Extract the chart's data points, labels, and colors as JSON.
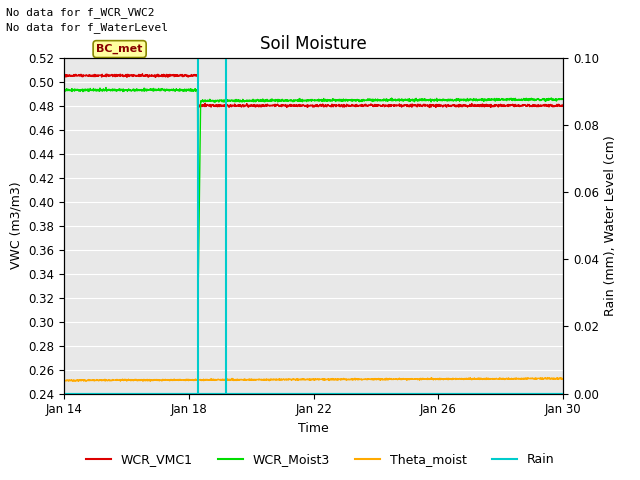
{
  "title": "Soil Moisture",
  "xlabel": "Time",
  "ylabel_left": "VWC (m3/m3)",
  "ylabel_right": "Rain (mm), Water Level (cm)",
  "annotation_line1": "No data for f_WCR_VWC2",
  "annotation_line2": "No data for f_WaterLevel",
  "bc_met_label": "BC_met",
  "ylim_left": [
    0.24,
    0.52
  ],
  "ylim_right": [
    0.0,
    0.1
  ],
  "yticks_left": [
    0.24,
    0.26,
    0.28,
    0.3,
    0.32,
    0.34,
    0.36,
    0.38,
    0.4,
    0.42,
    0.44,
    0.46,
    0.48,
    0.5,
    0.52
  ],
  "yticks_right": [
    0.0,
    0.02,
    0.04,
    0.06,
    0.08,
    0.1
  ],
  "xtick_labels": [
    "Jan 14",
    "Jan 18",
    "Jan 22",
    "Jan 26",
    "Jan 30"
  ],
  "xtick_positions": [
    0,
    4,
    8,
    12,
    16
  ],
  "total_days": 16,
  "background_color": "#e8e8e8",
  "grid_color": "#ffffff",
  "colors": {
    "WCR_VMC1": "#dd0000",
    "WCR_Moist3": "#00dd00",
    "Theta_moist": "#ffaa00",
    "Rain": "#00cccc"
  },
  "vline_day1": 4.3,
  "vline_day2": 5.2,
  "title_fontsize": 12,
  "axis_label_fontsize": 9,
  "tick_fontsize": 8.5,
  "annot_fontsize": 8,
  "legend_fontsize": 9
}
